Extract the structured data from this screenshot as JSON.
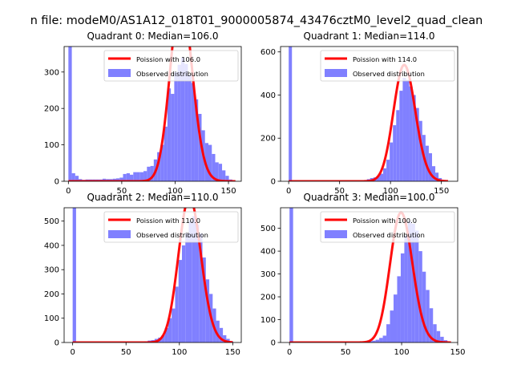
{
  "figure": {
    "suptitle": "n file: modeM0/AS1A12_018T01_9000005874_43476cztM0_level2_quad_clean"
  },
  "colors": {
    "model_line": "#ff0000",
    "histogram_bar": "#8080ff",
    "axis": "#000000",
    "background": "#ffffff"
  },
  "chart_data": [
    {
      "type": "bar",
      "title": "Quadrant 0: Median=106.0",
      "median": 106.0,
      "xlim": [
        -4,
        162
      ],
      "ylim": [
        0,
        370
      ],
      "xticks": [
        0,
        50,
        100,
        150
      ],
      "yticks": [
        0,
        100,
        200,
        300
      ],
      "bin_width": 3.2,
      "observed_distribution": {
        "name": "Observed distribution",
        "x": [
          0,
          3.2,
          6.4,
          9.6,
          12.8,
          16,
          19.2,
          22.4,
          25.6,
          28.8,
          32,
          35.2,
          38.4,
          41.6,
          44.8,
          48,
          51.2,
          54.4,
          57.6,
          60.8,
          64,
          67.2,
          70.4,
          73.6,
          76.8,
          80,
          83.2,
          86.4,
          89.6,
          92.8,
          96,
          99.2,
          102.4,
          105.6,
          108.8,
          112,
          115.2,
          118.4,
          121.6,
          124.8,
          128,
          131.2,
          134.4,
          137.6,
          140.8,
          144,
          147.2,
          150.4,
          153.6
        ],
        "values": [
          370,
          22,
          15,
          6,
          4,
          5,
          5,
          5,
          5,
          5,
          7,
          6,
          6,
          7,
          8,
          10,
          20,
          22,
          18,
          25,
          25,
          25,
          28,
          40,
          42,
          60,
          80,
          100,
          150,
          255,
          240,
          300,
          320,
          340,
          322,
          292,
          270,
          225,
          185,
          140,
          105,
          100,
          75,
          52,
          48,
          30,
          15,
          5,
          1
        ]
      },
      "poisson": {
        "name": "Poission with 106.0",
        "lambda": 106.0
      }
    },
    {
      "type": "bar",
      "title": "Quadrant 1: Median=114.0",
      "median": 114.0,
      "xlim": [
        -8,
        166
      ],
      "ylim": [
        0,
        625
      ],
      "xticks": [
        0,
        50,
        100,
        150
      ],
      "yticks": [
        0,
        200,
        400,
        600
      ],
      "bin_width": 3.2,
      "observed_distribution": {
        "name": "Observed distribution",
        "x": [
          0,
          3.2,
          6.4,
          9.6,
          12.8,
          16,
          19.2,
          22.4,
          25.6,
          28.8,
          32,
          35.2,
          38.4,
          41.6,
          44.8,
          48,
          51.2,
          54.4,
          57.6,
          60.8,
          64,
          67.2,
          70.4,
          73.6,
          76.8,
          80,
          83.2,
          86.4,
          89.6,
          92.8,
          96,
          99.2,
          102.4,
          105.6,
          108.8,
          112,
          115.2,
          118.4,
          121.6,
          124.8,
          128,
          131.2,
          134.4,
          137.6,
          140.8,
          144,
          147.2,
          150.4,
          153.6
        ],
        "values": [
          625,
          0,
          0,
          0,
          0,
          0,
          0,
          0,
          0,
          0,
          0,
          0,
          0,
          0,
          0,
          0,
          0,
          0,
          0,
          0,
          0,
          0,
          2,
          5,
          10,
          15,
          18,
          25,
          35,
          60,
          100,
          180,
          260,
          330,
          420,
          480,
          470,
          440,
          400,
          340,
          280,
          215,
          165,
          130,
          70,
          40,
          15,
          5,
          1
        ]
      },
      "poisson": {
        "name": "Poission with 114.0",
        "lambda": 114.0
      }
    },
    {
      "type": "bar",
      "title": "Quadrant 2: Median=110.0",
      "median": 110.0,
      "xlim": [
        -8,
        158
      ],
      "ylim": [
        0,
        555
      ],
      "xticks": [
        0,
        50,
        100,
        150
      ],
      "yticks": [
        0,
        100,
        200,
        300,
        400,
        500
      ],
      "bin_width": 3.2,
      "observed_distribution": {
        "name": "Observed distribution",
        "x": [
          0,
          3.2,
          6.4,
          9.6,
          12.8,
          16,
          19.2,
          22.4,
          25.6,
          28.8,
          32,
          35.2,
          38.4,
          41.6,
          44.8,
          48,
          51.2,
          54.4,
          57.6,
          60.8,
          64,
          67.2,
          70.4,
          73.6,
          76.8,
          80,
          83.2,
          86.4,
          89.6,
          92.8,
          96,
          99.2,
          102.4,
          105.6,
          108.8,
          112,
          115.2,
          118.4,
          121.6,
          124.8,
          128,
          131.2,
          134.4,
          137.6,
          140.8,
          144,
          147.2
        ],
        "values": [
          555,
          0,
          0,
          0,
          0,
          0,
          0,
          0,
          0,
          0,
          0,
          0,
          0,
          0,
          0,
          0,
          0,
          0,
          0,
          0,
          0,
          5,
          8,
          10,
          15,
          20,
          30,
          60,
          100,
          140,
          230,
          340,
          400,
          450,
          500,
          520,
          485,
          450,
          350,
          260,
          200,
          140,
          90,
          60,
          30,
          15,
          5
        ]
      },
      "poisson": {
        "name": "Poission with 110.0",
        "lambda": 110.0
      }
    },
    {
      "type": "bar",
      "title": "Quadrant 3: Median=100.0",
      "median": 100.0,
      "xlim": [
        -8,
        150
      ],
      "ylim": [
        0,
        590
      ],
      "xticks": [
        0,
        50,
        100,
        150
      ],
      "yticks": [
        0,
        100,
        200,
        300,
        400,
        500
      ],
      "bin_width": 3.2,
      "observed_distribution": {
        "name": "Observed distribution",
        "x": [
          0,
          3.2,
          6.4,
          9.6,
          12.8,
          16,
          19.2,
          22.4,
          25.6,
          28.8,
          32,
          35.2,
          38.4,
          41.6,
          44.8,
          48,
          51.2,
          54.4,
          57.6,
          60.8,
          64,
          67.2,
          70.4,
          73.6,
          76.8,
          80,
          83.2,
          86.4,
          89.6,
          92.8,
          96,
          99.2,
          102.4,
          105.6,
          108.8,
          112,
          115.2,
          118.4,
          121.6,
          124.8,
          128,
          131.2,
          134.4,
          137.6,
          140.8
        ],
        "values": [
          590,
          0,
          0,
          0,
          0,
          0,
          0,
          0,
          0,
          0,
          0,
          0,
          0,
          0,
          0,
          0,
          0,
          0,
          0,
          0,
          0,
          3,
          5,
          8,
          12,
          20,
          30,
          80,
          140,
          210,
          290,
          390,
          470,
          530,
          520,
          490,
          400,
          310,
          230,
          150,
          80,
          50,
          25,
          10,
          2
        ]
      },
      "poisson": {
        "name": "Poission with 100.0",
        "lambda": 100.0
      }
    }
  ]
}
